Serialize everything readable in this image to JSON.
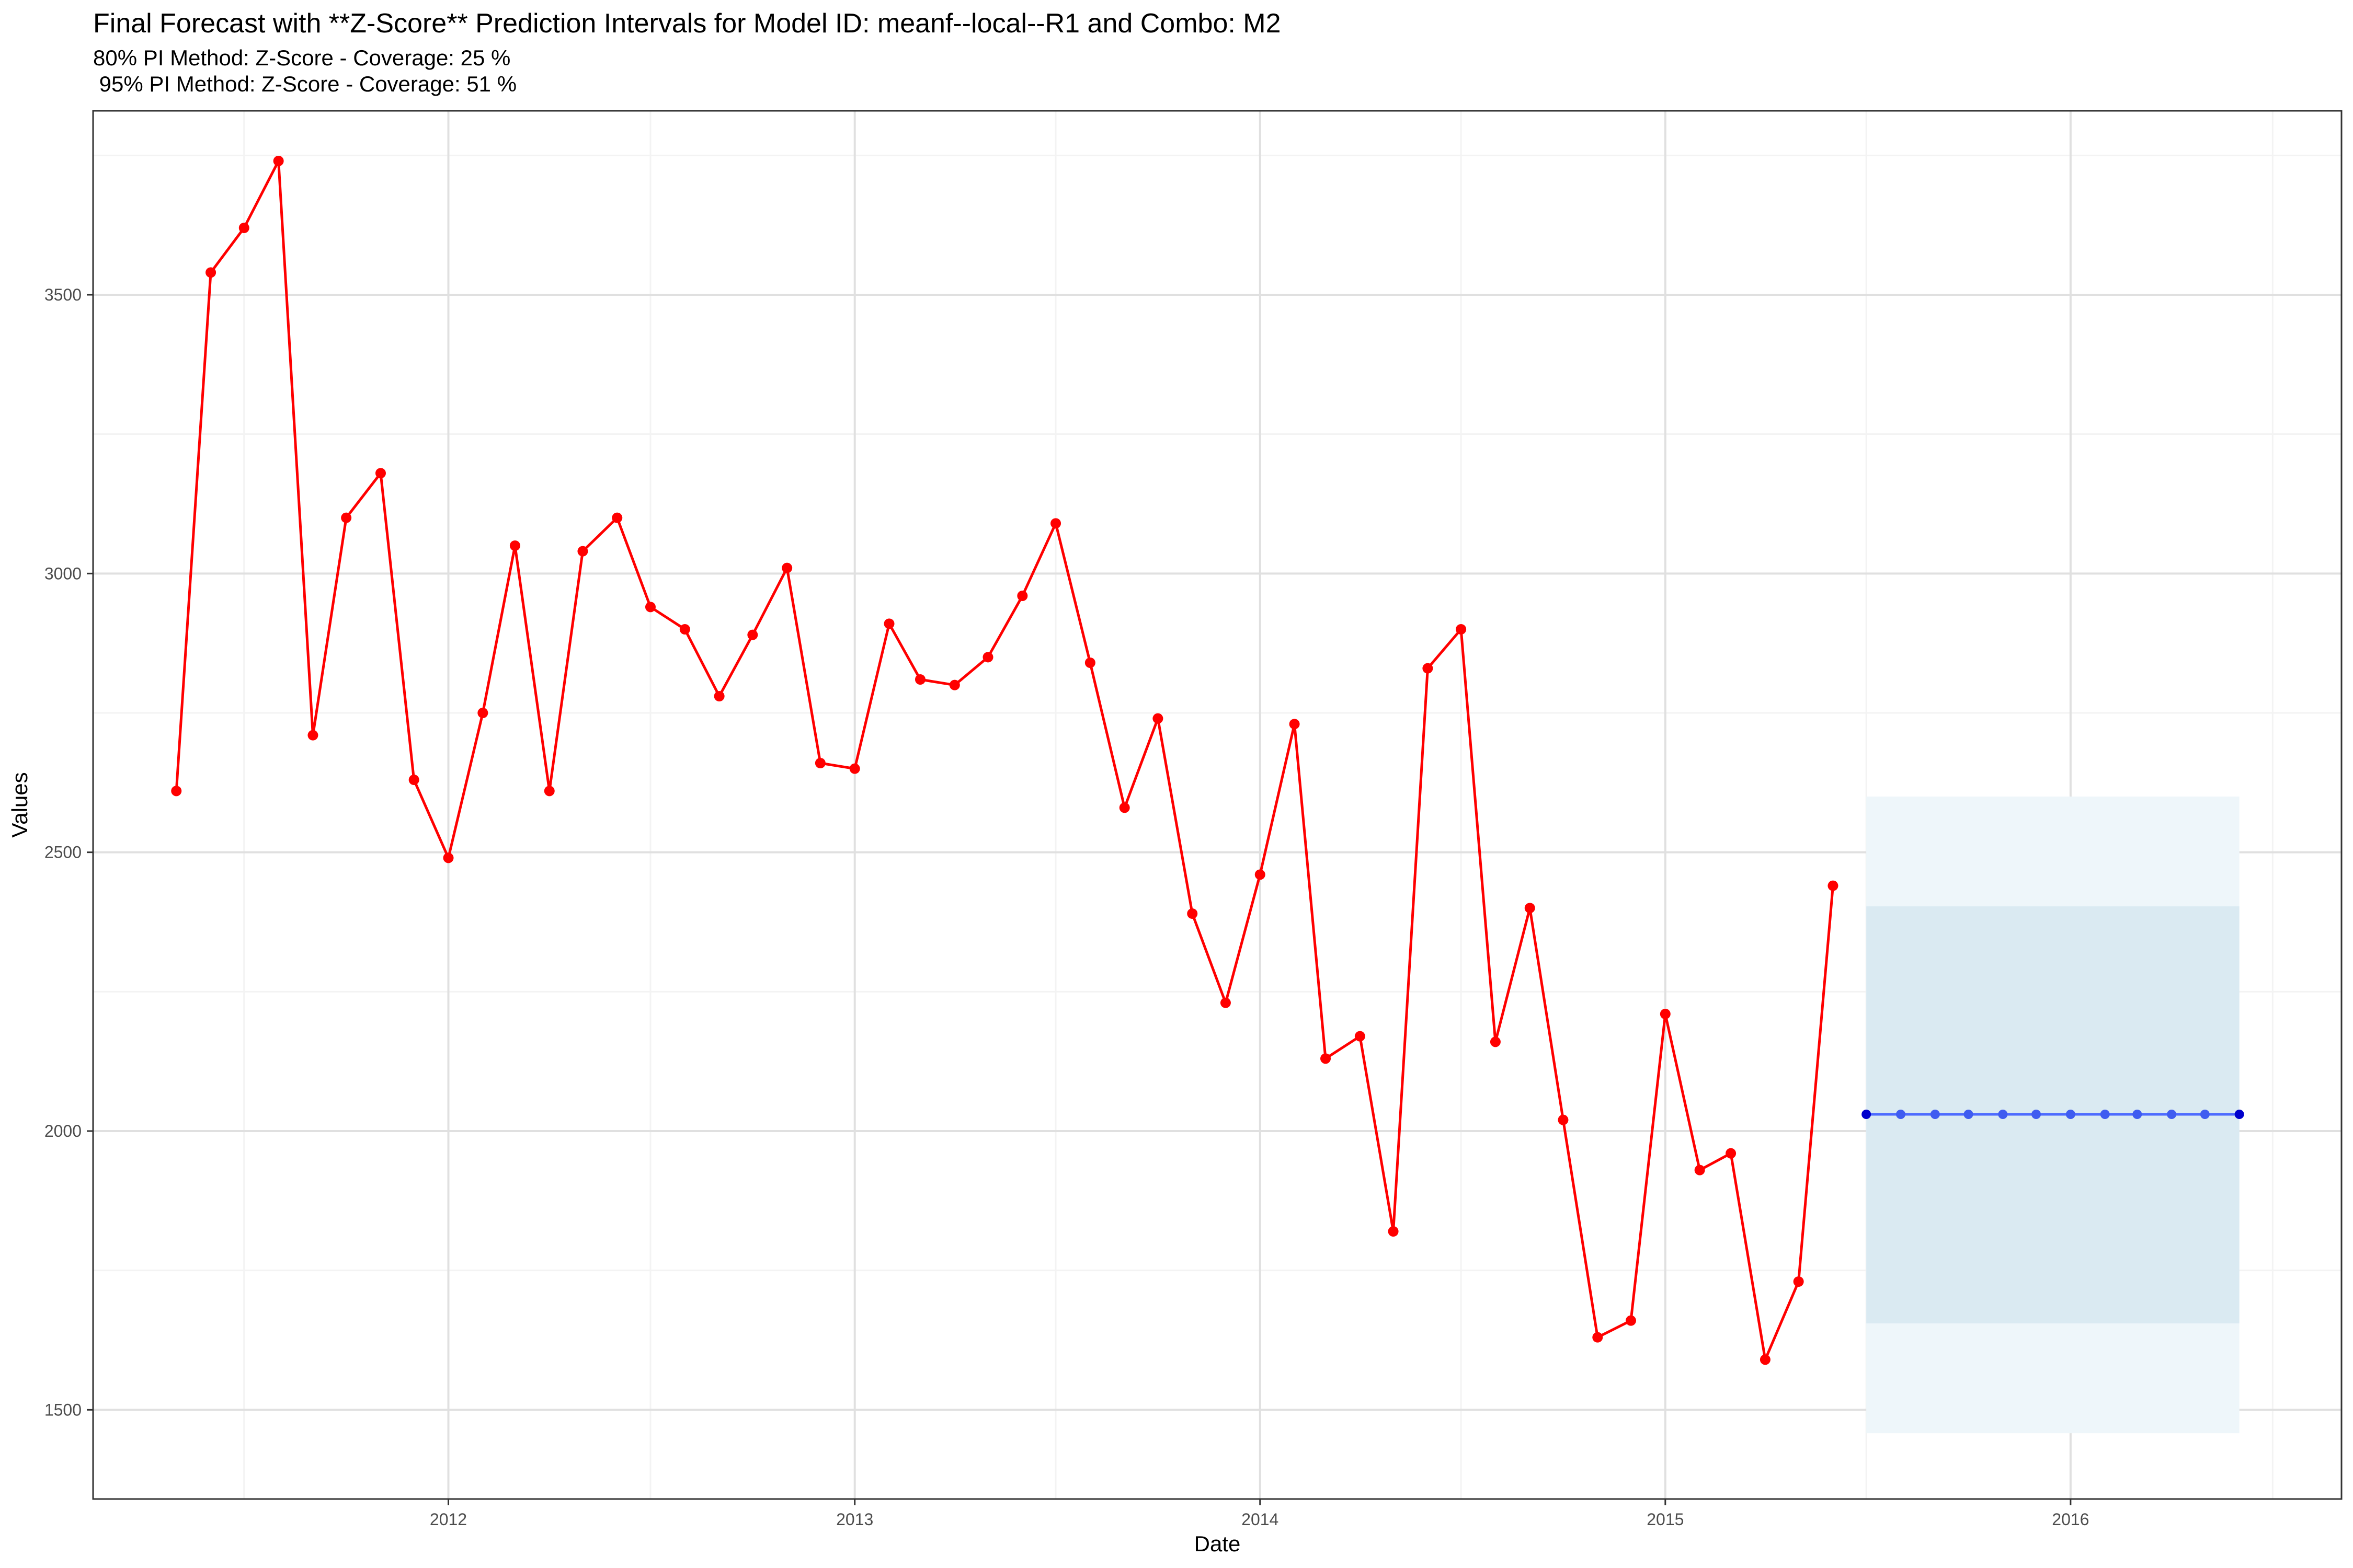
{
  "chart_data": {
    "type": "line",
    "title": "Final Forecast with **Z-Score** Prediction Intervals for Model ID: meanf--local--R1 and Combo: M2",
    "subtitle_line1": "80% PI Method: Z-Score - Coverage: 25 %",
    "subtitle_line2": " 95% PI Method: Z-Score - Coverage: 51 %",
    "xlabel": "Date",
    "ylabel": "Values",
    "x_ticks": [
      "2012",
      "2013",
      "2014",
      "2015",
      "2016"
    ],
    "y_ticks": [
      1500,
      2000,
      2500,
      3000,
      3500
    ],
    "xlim": [
      "2011-02-15",
      "2016-09-01"
    ],
    "ylim": [
      1340,
      3830
    ],
    "grid": true,
    "colors": {
      "actual": "#ff0000",
      "forecast_line": "#4d6bff",
      "forecast_point": "#3f5cf0",
      "forecast_endpoint": "#0000cc",
      "pi95": "#eef6fa",
      "pi80": "#daeaf2",
      "grid_major": "#e0e0e0",
      "grid_minor": "#f3f3f3"
    },
    "series": [
      {
        "dates": [
          "2011-05-01",
          "2011-06-01",
          "2011-07-01",
          "2011-08-01",
          "2011-09-01",
          "2011-10-01",
          "2011-11-01",
          "2011-12-01",
          "2012-01-01",
          "2012-02-01",
          "2012-03-01",
          "2012-04-01",
          "2012-05-01",
          "2012-06-01",
          "2012-07-01",
          "2012-08-01",
          "2012-09-01",
          "2012-10-01",
          "2012-11-01",
          "2012-12-01",
          "2013-01-01",
          "2013-02-01",
          "2013-03-01",
          "2013-04-01",
          "2013-05-01",
          "2013-06-01",
          "2013-07-01",
          "2013-08-01",
          "2013-09-01",
          "2013-10-01",
          "2013-11-01",
          "2013-12-01",
          "2014-01-01",
          "2014-02-01",
          "2014-03-01",
          "2014-04-01",
          "2014-05-01",
          "2014-06-01",
          "2014-07-01",
          "2014-08-01",
          "2014-09-01",
          "2014-10-01",
          "2014-11-01",
          "2014-12-01",
          "2015-01-01",
          "2015-02-01",
          "2015-03-01",
          "2015-04-01",
          "2015-05-01",
          "2015-06-01"
        ],
        "values": [
          2610,
          3540,
          3620,
          3740,
          2710,
          3100,
          3180,
          2630,
          2490,
          2750,
          3050,
          2610,
          3040,
          3100,
          2940,
          2900,
          2780,
          2890,
          3010,
          2660,
          2650,
          2910,
          2810,
          2800,
          2850,
          2960,
          3090,
          2840,
          2580,
          2740,
          2390,
          2230,
          2460,
          2730,
          2130,
          2170,
          1820,
          2830,
          2900,
          2160,
          2400,
          2020,
          1630,
          1660,
          2210,
          1930,
          1960,
          1590,
          1730,
          2440
        ]
      },
      {
        "dates": [
          "2015-07-01",
          "2015-08-01",
          "2015-09-01",
          "2015-10-01",
          "2015-11-01",
          "2015-12-01",
          "2016-01-01",
          "2016-02-01",
          "2016-03-01",
          "2016-04-01",
          "2016-05-01",
          "2016-06-01"
        ],
        "values": [
          2030,
          2030,
          2030,
          2030,
          2030,
          2030,
          2030,
          2030,
          2030,
          2030,
          2030,
          2030
        ]
      }
    ],
    "intervals": {
      "start": "2015-07-01",
      "end": "2016-06-01",
      "lo95": 1458,
      "hi95": 2600,
      "lo80": 1655,
      "hi80": 2403
    }
  }
}
